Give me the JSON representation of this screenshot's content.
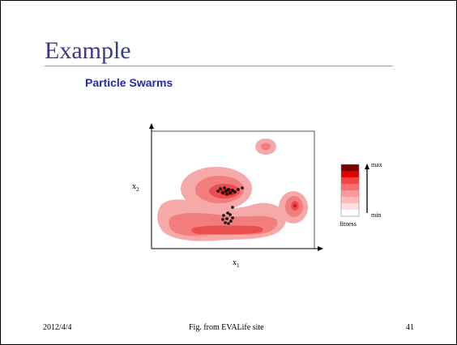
{
  "slide": {
    "title": "Example",
    "subtitle": "Particle Swarms",
    "footer_date": "2012/4/4",
    "footer_source": "Fig. from EVALife site",
    "page_number": "41"
  },
  "figure": {
    "x_label": "x",
    "x_label_sub": "1",
    "y_label": "x",
    "y_label_sub": "2",
    "legend": {
      "max_label": "max",
      "min_label": "min",
      "title": "fitness",
      "colors": [
        "#7a0000",
        "#e00000",
        "#f24444",
        "#f77070",
        "#fa9a9a",
        "#fcbcbc",
        "#fde0e0",
        "#ffffff"
      ]
    },
    "landscape_colors": {
      "outer": "#f6a9a9",
      "mid": "#f17d7d",
      "inner": "#ea4e4e",
      "core": "#d91a1a"
    },
    "particle_color": "#000000"
  }
}
